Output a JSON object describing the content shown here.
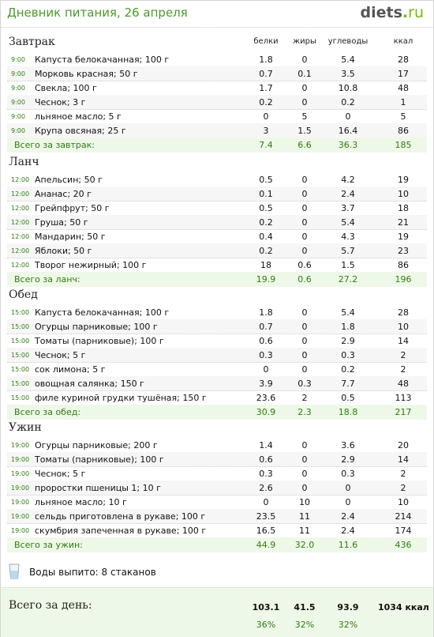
{
  "header": {
    "title": "Дневник питания, 26 апреля",
    "logo_main": "diets",
    "logo_dot": ".",
    "logo_tld": "ru"
  },
  "columns": {
    "protein": "белки",
    "fat": "жиры",
    "carbs": "углеводы",
    "kcal": "ккал"
  },
  "meals": [
    {
      "title": "Завтрак",
      "items": [
        {
          "time": "9:00",
          "name": "Капуста белокачанная; 100 г",
          "p": "1.8",
          "f": "0",
          "c": "5.4",
          "k": "28"
        },
        {
          "time": "9:00",
          "name": "Морковь красная; 50 г",
          "p": "0.7",
          "f": "0.1",
          "c": "3.5",
          "k": "17"
        },
        {
          "time": "9:00",
          "name": "Свекла; 100 г",
          "p": "1.7",
          "f": "0",
          "c": "10.8",
          "k": "48"
        },
        {
          "time": "9:00",
          "name": "Чеснок; 3 г",
          "p": "0.2",
          "f": "0",
          "c": "0.2",
          "k": "1"
        },
        {
          "time": "9:00",
          "name": "льняное масло; 5 г",
          "p": "0",
          "f": "5",
          "c": "0",
          "k": "5"
        },
        {
          "time": "9:00",
          "name": "Крупа овсяная; 25 г",
          "p": "3",
          "f": "1.5",
          "c": "16.4",
          "k": "86"
        }
      ],
      "total": {
        "label": "Всего за завтрак:",
        "p": "7.4",
        "f": "6.6",
        "c": "36.3",
        "k": "185"
      }
    },
    {
      "title": "Ланч",
      "items": [
        {
          "time": "12:00",
          "name": "Апельсин; 50 г",
          "p": "0.5",
          "f": "0",
          "c": "4.2",
          "k": "19"
        },
        {
          "time": "12:00",
          "name": "Ананас; 20 г",
          "p": "0.1",
          "f": "0",
          "c": "2.4",
          "k": "10"
        },
        {
          "time": "12:00",
          "name": "Грейпфрут; 50 г",
          "p": "0.5",
          "f": "0",
          "c": "3.7",
          "k": "18"
        },
        {
          "time": "12:00",
          "name": "Груша; 50 г",
          "p": "0.2",
          "f": "0",
          "c": "5.4",
          "k": "21"
        },
        {
          "time": "12:00",
          "name": "Мандарин; 50 г",
          "p": "0.4",
          "f": "0",
          "c": "4.3",
          "k": "19"
        },
        {
          "time": "12:00",
          "name": "Яблоки; 50 г",
          "p": "0.2",
          "f": "0",
          "c": "5.7",
          "k": "23"
        },
        {
          "time": "12:00",
          "name": "Творог нежирный; 100 г",
          "p": "18",
          "f": "0.6",
          "c": "1.5",
          "k": "86"
        }
      ],
      "total": {
        "label": "Всего за ланч:",
        "p": "19.9",
        "f": "0.6",
        "c": "27.2",
        "k": "196"
      }
    },
    {
      "title": "Обед",
      "items": [
        {
          "time": "15:00",
          "name": "Капуста белокачанная; 100 г",
          "p": "1.8",
          "f": "0",
          "c": "5.4",
          "k": "28"
        },
        {
          "time": "15:00",
          "name": "Огурцы парниковые; 100 г",
          "p": "0.7",
          "f": "0",
          "c": "1.8",
          "k": "10"
        },
        {
          "time": "15:00",
          "name": "Томаты (парниковые); 100 г",
          "p": "0.6",
          "f": "0",
          "c": "2.9",
          "k": "14"
        },
        {
          "time": "15:00",
          "name": "Чеснок; 5 г",
          "p": "0.3",
          "f": "0",
          "c": "0.3",
          "k": "2"
        },
        {
          "time": "15:00",
          "name": "сок лимона; 5 г",
          "p": "0",
          "f": "0",
          "c": "0.2",
          "k": "2"
        },
        {
          "time": "15:00",
          "name": "овощная салянка; 150 г",
          "p": "3.9",
          "f": "0.3",
          "c": "7.7",
          "k": "48"
        },
        {
          "time": "15:00",
          "name": "филе куриной грудки тушёная; 150 г",
          "p": "23.6",
          "f": "2",
          "c": "0.5",
          "k": "113"
        }
      ],
      "total": {
        "label": "Всего за обед:",
        "p": "30.9",
        "f": "2.3",
        "c": "18.8",
        "k": "217"
      }
    },
    {
      "title": "Ужин",
      "items": [
        {
          "time": "19:00",
          "name": "Огурцы парниковые; 200 г",
          "p": "1.4",
          "f": "0",
          "c": "3.6",
          "k": "20"
        },
        {
          "time": "19:00",
          "name": "Томаты (парниковые); 100 г",
          "p": "0.6",
          "f": "0",
          "c": "2.9",
          "k": "14"
        },
        {
          "time": "19:00",
          "name": "Чеснок; 5 г",
          "p": "0.3",
          "f": "0",
          "c": "0.3",
          "k": "2"
        },
        {
          "time": "19:00",
          "name": "проростки пшеницы 1; 10 г",
          "p": "2.6",
          "f": "0",
          "c": "0",
          "k": "2"
        },
        {
          "time": "19:00",
          "name": "льняное масло; 10 г",
          "p": "0",
          "f": "10",
          "c": "0",
          "k": "10"
        },
        {
          "time": "19:00",
          "name": "сельдь приготовлена в рукаве; 100 г",
          "p": "23.5",
          "f": "11",
          "c": "2.4",
          "k": "214"
        },
        {
          "time": "19:00",
          "name": "скумбрия запеченная в рукаве; 100 г",
          "p": "16.5",
          "f": "11",
          "c": "2.4",
          "k": "174"
        }
      ],
      "total": {
        "label": "Всего за ужин:",
        "p": "44.9",
        "f": "32.0",
        "c": "11.6",
        "k": "436"
      }
    }
  ],
  "water": {
    "icon": "glass-icon",
    "text": "Воды выпито: 8 стаканов"
  },
  "day": {
    "label": "Всего за день:",
    "p": "103.1",
    "f": "41.5",
    "c": "93.9",
    "k": "1034 ккал",
    "p_pct": "36%",
    "f_pct": "32%",
    "c_pct": "32%"
  },
  "colors": {
    "accent_green": "#2e7d0e",
    "total_bg": "#eef8e8",
    "logo_green": "#7ab800"
  }
}
